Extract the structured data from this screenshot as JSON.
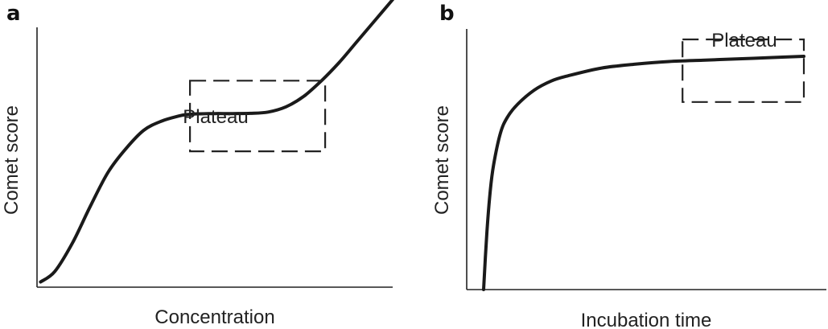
{
  "chart_data": [
    {
      "type": "line",
      "panel_label": "a",
      "xlabel": "Concentration",
      "ylabel": "Comet score",
      "title": "",
      "xlim": [
        0,
        100
      ],
      "ylim": [
        0,
        100
      ],
      "grid": false,
      "series": [
        {
          "x": [
            1,
            5,
            10,
            15,
            20,
            25,
            30,
            35,
            40,
            42,
            45,
            50,
            55,
            60,
            65,
            70,
            75,
            80,
            85,
            90,
            95,
            100
          ],
          "y": [
            2,
            6,
            17,
            31,
            44,
            53,
            60,
            63.5,
            65.5,
            66,
            66.3,
            66.4,
            66.4,
            66.5,
            67,
            69,
            73,
            79,
            86,
            94,
            102,
            110
          ]
        }
      ],
      "annotations": [
        {
          "text": "Plateau",
          "box": {
            "x0": 43,
            "x1": 81,
            "y0": 52,
            "y1": 79
          }
        }
      ]
    },
    {
      "type": "line",
      "panel_label": "b",
      "xlabel": "Incubation time",
      "ylabel": "Comet score",
      "title": "",
      "xlim": [
        0,
        100
      ],
      "ylim": [
        0,
        100
      ],
      "grid": false,
      "series": [
        {
          "x": [
            5,
            6,
            7,
            8,
            10,
            12,
            15,
            20,
            25,
            30,
            40,
            50,
            60,
            70,
            80,
            90,
            100
          ],
          "y": [
            0,
            22,
            38,
            48,
            60,
            66,
            71,
            76.5,
            80,
            82,
            85,
            86.5,
            87.5,
            88,
            88.5,
            89,
            89.5
          ]
        }
      ],
      "annotations": [
        {
          "text": "Plateau",
          "box": {
            "x0": 64,
            "x1": 100,
            "y0": 72,
            "y1": 96
          }
        }
      ]
    }
  ]
}
